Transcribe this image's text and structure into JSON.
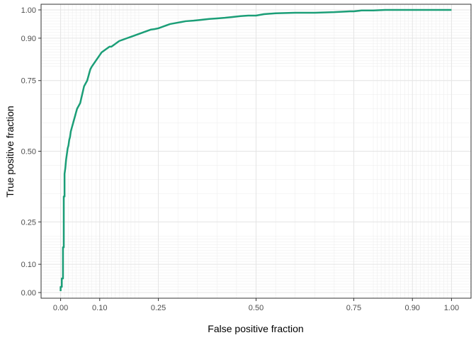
{
  "chart_data": {
    "type": "line",
    "xlabel": "False positive fraction",
    "ylabel": "True positive fraction",
    "xlim": [
      -0.05,
      1.05
    ],
    "ylim": [
      -0.02,
      1.02
    ],
    "x_ticks": [
      {
        "value": 0.0,
        "label": "0.00"
      },
      {
        "value": 0.1,
        "label": "0.10"
      },
      {
        "value": 0.25,
        "label": "0.25"
      },
      {
        "value": 0.5,
        "label": "0.50"
      },
      {
        "value": 0.75,
        "label": "0.75"
      },
      {
        "value": 0.9,
        "label": "0.90"
      },
      {
        "value": 1.0,
        "label": "1.00"
      }
    ],
    "y_ticks": [
      {
        "value": 0.0,
        "label": "0.00"
      },
      {
        "value": 0.1,
        "label": "0.10"
      },
      {
        "value": 0.25,
        "label": "0.25"
      },
      {
        "value": 0.5,
        "label": "0.50"
      },
      {
        "value": 0.75,
        "label": "0.75"
      },
      {
        "value": 0.9,
        "label": "0.90"
      },
      {
        "value": 1.0,
        "label": "1.00"
      }
    ],
    "minor_grid": [
      0.01,
      0.02,
      0.03,
      0.04,
      0.05,
      0.06,
      0.07,
      0.08,
      0.09,
      0.11,
      0.12,
      0.13,
      0.14,
      0.15,
      0.16,
      0.17,
      0.18,
      0.19,
      0.2,
      0.3,
      0.35,
      0.4,
      0.45,
      0.55,
      0.6,
      0.65,
      0.7,
      0.8,
      0.81,
      0.82,
      0.83,
      0.84,
      0.85,
      0.86,
      0.87,
      0.88,
      0.89,
      0.91,
      0.92,
      0.93,
      0.94,
      0.95,
      0.96,
      0.97,
      0.98,
      0.99
    ],
    "grid": true,
    "line_color": "#1b9e77",
    "series": [
      {
        "x": [
          0.0,
          0.0,
          0.003,
          0.003,
          0.006,
          0.006,
          0.008,
          0.008,
          0.01,
          0.01,
          0.012,
          0.014,
          0.016,
          0.018,
          0.02,
          0.022,
          0.024,
          0.026,
          0.028,
          0.03,
          0.034,
          0.038,
          0.042,
          0.046,
          0.05,
          0.055,
          0.06,
          0.064,
          0.068,
          0.072,
          0.076,
          0.08,
          0.085,
          0.09,
          0.095,
          0.1,
          0.105,
          0.11,
          0.115,
          0.12,
          0.125,
          0.13,
          0.14,
          0.15,
          0.16,
          0.17,
          0.18,
          0.19,
          0.2,
          0.21,
          0.22,
          0.23,
          0.24,
          0.25,
          0.26,
          0.27,
          0.28,
          0.3,
          0.32,
          0.34,
          0.36,
          0.38,
          0.4,
          0.42,
          0.44,
          0.46,
          0.48,
          0.5,
          0.52,
          0.55,
          0.6,
          0.65,
          0.7,
          0.74,
          0.75,
          0.77,
          0.8,
          0.83,
          0.85,
          0.88,
          0.9,
          0.95,
          1.0
        ],
        "y": [
          0.005,
          0.02,
          0.02,
          0.05,
          0.05,
          0.16,
          0.16,
          0.34,
          0.34,
          0.42,
          0.44,
          0.47,
          0.49,
          0.51,
          0.52,
          0.54,
          0.55,
          0.57,
          0.58,
          0.59,
          0.61,
          0.63,
          0.65,
          0.66,
          0.67,
          0.7,
          0.73,
          0.74,
          0.75,
          0.77,
          0.79,
          0.8,
          0.81,
          0.82,
          0.83,
          0.84,
          0.85,
          0.855,
          0.86,
          0.865,
          0.87,
          0.87,
          0.88,
          0.89,
          0.895,
          0.9,
          0.905,
          0.91,
          0.915,
          0.92,
          0.925,
          0.93,
          0.932,
          0.935,
          0.94,
          0.945,
          0.95,
          0.955,
          0.96,
          0.962,
          0.965,
          0.968,
          0.97,
          0.972,
          0.975,
          0.978,
          0.98,
          0.98,
          0.985,
          0.988,
          0.99,
          0.99,
          0.992,
          0.995,
          0.995,
          0.998,
          0.998,
          1.0,
          1.0,
          1.0,
          1.0,
          1.0,
          1.0
        ]
      }
    ]
  }
}
